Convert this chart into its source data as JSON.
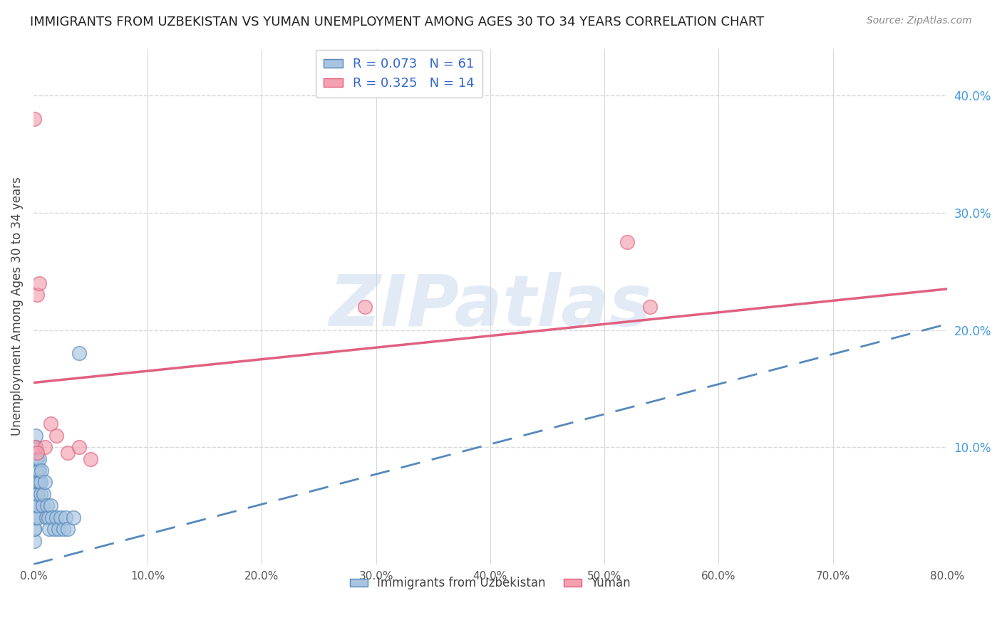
{
  "title": "IMMIGRANTS FROM UZBEKISTAN VS YUMAN UNEMPLOYMENT AMONG AGES 30 TO 34 YEARS CORRELATION CHART",
  "source": "Source: ZipAtlas.com",
  "ylabel": "Unemployment Among Ages 30 to 34 years",
  "xlabel_blue": "Immigrants from Uzbekistan",
  "xlabel_pink": "Yuman",
  "xlim": [
    0.0,
    0.8
  ],
  "ylim": [
    0.0,
    0.44
  ],
  "xticks": [
    0.0,
    0.1,
    0.2,
    0.3,
    0.4,
    0.5,
    0.6,
    0.7,
    0.8
  ],
  "yticks_right": [
    0.1,
    0.2,
    0.3,
    0.4
  ],
  "ytick_labels_right": [
    "10.0%",
    "20.0%",
    "30.0%",
    "40.0%"
  ],
  "xtick_labels": [
    "0.0%",
    "10.0%",
    "20.0%",
    "30.0%",
    "40.0%",
    "50.0%",
    "60.0%",
    "70.0%",
    "80.0%"
  ],
  "R_blue": 0.073,
  "N_blue": 61,
  "R_pink": 0.325,
  "N_pink": 14,
  "blue_color": "#a8c4e0",
  "pink_color": "#f4a0b0",
  "trendline_blue_color": "#5588bb",
  "trendline_pink_color": "#e06080",
  "blue_trend_x0": 0.0,
  "blue_trend_y0": 0.0,
  "blue_trend_x1": 0.8,
  "blue_trend_y1": 0.205,
  "pink_trend_x0": 0.0,
  "pink_trend_y0": 0.155,
  "pink_trend_x1": 0.8,
  "pink_trend_y1": 0.235,
  "blue_scatter_x": [
    0.001,
    0.001,
    0.001,
    0.001,
    0.001,
    0.001,
    0.001,
    0.001,
    0.001,
    0.001,
    0.002,
    0.002,
    0.002,
    0.002,
    0.002,
    0.002,
    0.002,
    0.002,
    0.002,
    0.002,
    0.003,
    0.003,
    0.003,
    0.003,
    0.003,
    0.003,
    0.003,
    0.003,
    0.003,
    0.003,
    0.004,
    0.004,
    0.004,
    0.004,
    0.004,
    0.004,
    0.004,
    0.005,
    0.005,
    0.005,
    0.006,
    0.006,
    0.007,
    0.008,
    0.009,
    0.01,
    0.011,
    0.012,
    0.013,
    0.014,
    0.015,
    0.016,
    0.018,
    0.02,
    0.022,
    0.024,
    0.026,
    0.028,
    0.03,
    0.035,
    0.04
  ],
  "blue_scatter_y": [
    0.04,
    0.05,
    0.06,
    0.07,
    0.03,
    0.04,
    0.05,
    0.06,
    0.02,
    0.03,
    0.05,
    0.06,
    0.07,
    0.08,
    0.04,
    0.05,
    0.06,
    0.09,
    0.1,
    0.11,
    0.06,
    0.07,
    0.08,
    0.05,
    0.06,
    0.07,
    0.08,
    0.09,
    0.05,
    0.06,
    0.07,
    0.08,
    0.05,
    0.06,
    0.04,
    0.05,
    0.06,
    0.07,
    0.08,
    0.09,
    0.06,
    0.07,
    0.08,
    0.05,
    0.06,
    0.07,
    0.04,
    0.05,
    0.04,
    0.03,
    0.05,
    0.04,
    0.03,
    0.04,
    0.03,
    0.04,
    0.03,
    0.04,
    0.03,
    0.04,
    0.18
  ],
  "pink_scatter_x": [
    0.001,
    0.002,
    0.003,
    0.005,
    0.01,
    0.015,
    0.02,
    0.03,
    0.04,
    0.05,
    0.52,
    0.54,
    0.29,
    0.003
  ],
  "pink_scatter_y": [
    0.38,
    0.1,
    0.23,
    0.24,
    0.1,
    0.12,
    0.11,
    0.095,
    0.1,
    0.09,
    0.275,
    0.22,
    0.22,
    0.095
  ],
  "watermark_text": "ZIPatlas",
  "background_color": "#ffffff",
  "grid_color": "#d8d8d8"
}
